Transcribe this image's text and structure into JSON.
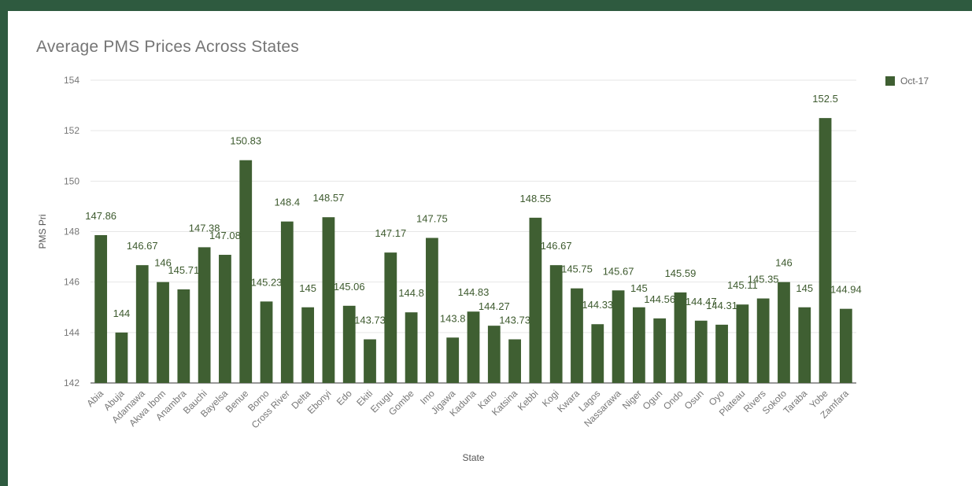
{
  "chart_data": {
    "type": "bar",
    "title": "Average PMS Prices Across States",
    "xlabel": "State",
    "ylabel": "PMS Pri",
    "ylim": [
      142,
      154
    ],
    "yticks": [
      142,
      144,
      146,
      148,
      150,
      152,
      154
    ],
    "grid": true,
    "legend_position": "right",
    "bar_color": "#3f5f32",
    "categories": [
      "Abia",
      "Abuja",
      "Adamawa",
      "Akwa Ibom",
      "Anambra",
      "Bauchi",
      "Bayelsa",
      "Benue",
      "Borno",
      "Cross River",
      "Delta",
      "Ebonyi",
      "Edo",
      "Ekiti",
      "Enugu",
      "Gombe",
      "Imo",
      "Jigawa",
      "Kaduna",
      "Kano",
      "Katsina",
      "Kebbi",
      "Kogi",
      "Kwara",
      "Lagos",
      "Nassarawa",
      "Niger",
      "Ogun",
      "Ondo",
      "Osun",
      "Oyo",
      "Plateau",
      "Rivers",
      "Sokoto",
      "Taraba",
      "Yobe",
      "Zamfara"
    ],
    "series": [
      {
        "name": "Oct-17",
        "values": [
          147.86,
          144,
          146.67,
          146,
          145.71,
          147.38,
          147.08,
          150.83,
          145.23,
          148.4,
          145,
          148.57,
          145.06,
          143.73,
          147.17,
          144.8,
          147.75,
          143.8,
          144.83,
          144.27,
          143.73,
          148.55,
          146.67,
          145.75,
          144.33,
          145.67,
          145,
          144.56,
          145.59,
          144.47,
          144.31,
          145.11,
          145.35,
          146,
          145,
          152.5,
          144.94
        ]
      }
    ]
  }
}
